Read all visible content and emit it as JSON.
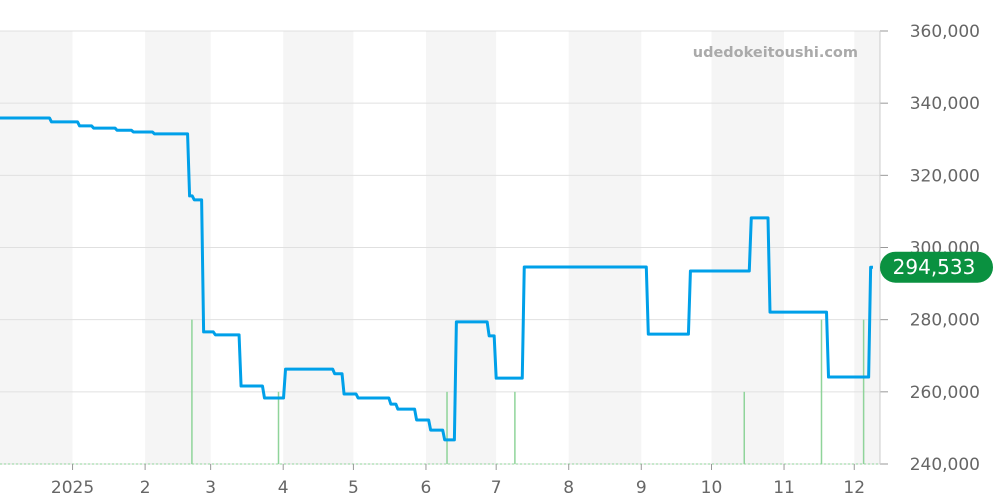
{
  "watermark": "udedokeitoushi.com",
  "chart_data": {
    "type": "line",
    "title": "",
    "xlabel": "",
    "ylabel": "",
    "ylim": [
      240000,
      360000
    ],
    "xlim": [
      "2024-12-01",
      "2025-12-12"
    ],
    "y_ticks": [
      240000,
      260000,
      280000,
      300000,
      320000,
      340000,
      360000
    ],
    "y_tick_labels": [
      "240,000",
      "260,000",
      "280,000",
      "300,000",
      "320,000",
      "340,000",
      "360,000"
    ],
    "y_axis_position": "right",
    "x_ticks": [
      {
        "date": "2025-01-01",
        "label": "2025"
      },
      {
        "date": "2025-02-01",
        "label": "2"
      },
      {
        "date": "2025-03-01",
        "label": "3"
      },
      {
        "date": "2025-04-01",
        "label": "4"
      },
      {
        "date": "2025-05-01",
        "label": "5"
      },
      {
        "date": "2025-06-01",
        "label": "6"
      },
      {
        "date": "2025-07-01",
        "label": "7"
      },
      {
        "date": "2025-08-01",
        "label": "8"
      },
      {
        "date": "2025-09-01",
        "label": "9"
      },
      {
        "date": "2025-10-01",
        "label": "10"
      },
      {
        "date": "2025-11-01",
        "label": "11"
      },
      {
        "date": "2025-12-01",
        "label": "12"
      }
    ],
    "grid": true,
    "alternating_month_bands": true,
    "colors": {
      "line": "#00a0e9",
      "volume": "#8fd49a",
      "badge": "#0a9140",
      "band": "#f5f5f5",
      "grid": "#e0e0e0"
    },
    "price_series": {
      "step": true,
      "points": [
        [
          "2024-12-01",
          335900
        ],
        [
          "2024-12-23",
          334800
        ],
        [
          "2025-01-04",
          333700
        ],
        [
          "2025-01-10",
          333100
        ],
        [
          "2025-01-20",
          332500
        ],
        [
          "2025-01-27",
          332000
        ],
        [
          "2025-02-05",
          331500
        ],
        [
          "2025-02-20",
          314300
        ],
        [
          "2025-02-22",
          313200
        ],
        [
          "2025-02-26",
          276600
        ],
        [
          "2025-03-03",
          275800
        ],
        [
          "2025-03-14",
          261600
        ],
        [
          "2025-03-24",
          258300
        ],
        [
          "2025-04-02",
          266300
        ],
        [
          "2025-04-23",
          265000
        ],
        [
          "2025-04-27",
          259400
        ],
        [
          "2025-05-03",
          258300
        ],
        [
          "2025-05-17",
          256600
        ],
        [
          "2025-05-20",
          255200
        ],
        [
          "2025-05-28",
          252200
        ],
        [
          "2025-06-03",
          249400
        ],
        [
          "2025-06-09",
          246700
        ],
        [
          "2025-06-14",
          279400
        ],
        [
          "2025-06-28",
          275500
        ],
        [
          "2025-07-01",
          263800
        ],
        [
          "2025-07-13",
          294600
        ],
        [
          "2025-09-04",
          276000
        ],
        [
          "2025-09-22",
          293500
        ],
        [
          "2025-10-18",
          308200
        ],
        [
          "2025-10-26",
          282100
        ],
        [
          "2025-11-20",
          264100
        ],
        [
          "2025-12-08",
          294533
        ]
      ],
      "end_date": "2025-12-09"
    },
    "volume_series": {
      "points": [
        [
          "2025-02-21",
          2
        ],
        [
          "2025-03-30",
          1
        ],
        [
          "2025-06-10",
          1
        ],
        [
          "2025-07-09",
          1
        ],
        [
          "2025-10-15",
          1
        ],
        [
          "2025-11-17",
          2
        ],
        [
          "2025-12-05",
          2
        ]
      ],
      "max": 6
    },
    "last_value": 294533,
    "last_value_label": "294,533"
  }
}
